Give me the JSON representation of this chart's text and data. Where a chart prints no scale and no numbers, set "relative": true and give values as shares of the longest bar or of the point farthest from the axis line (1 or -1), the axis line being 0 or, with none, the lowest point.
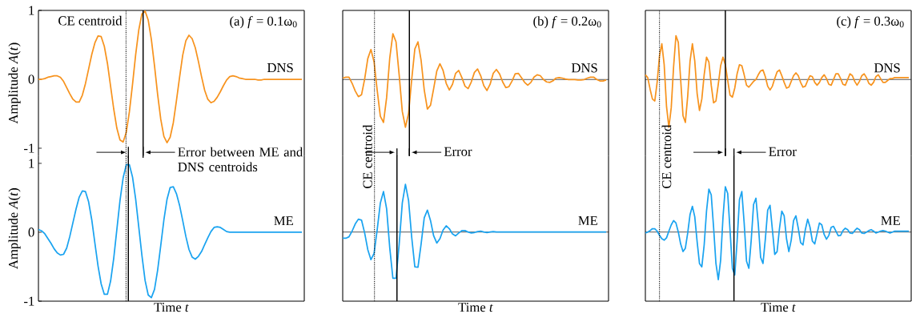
{
  "chart_data": [
    {
      "type": "line",
      "title": "(a) *f* = 0.1ω$_{0}$",
      "ylabel": "Amplitude *A*(*t*)",
      "ylim": [
        -1.11,
        1
      ],
      "yticks": [
        -1,
        0,
        1
      ],
      "tick_labels": "y",
      "categories": [
        null,
        null,
        null,
        null,
        null,
        null,
        null,
        null,
        null,
        null,
        null,
        null,
        null,
        null,
        null,
        null,
        null,
        null,
        null,
        null,
        null,
        null,
        null,
        null,
        null,
        null,
        null,
        null,
        null,
        null,
        null,
        null,
        null,
        null,
        null,
        null,
        null,
        null,
        null,
        null,
        null,
        null,
        null,
        null,
        null,
        null,
        null,
        null,
        null,
        null,
        null,
        null,
        null,
        null,
        null,
        null,
        null,
        null,
        null,
        null,
        null,
        null,
        null,
        null,
        null,
        null,
        null,
        null,
        null,
        null,
        null,
        null,
        null,
        null,
        null,
        null,
        null,
        null,
        null,
        null,
        null,
        null,
        null,
        null,
        null
      ],
      "series": [
        {
          "name": "DNS",
          "color": "#f7931e",
          "values": [
            0,
            0,
            0.01,
            0.03,
            0.04,
            0.05,
            0.05,
            0.03,
            -0.03,
            -0.12,
            -0.21,
            -0.29,
            -0.33,
            -0.33,
            -0.23,
            -0.06,
            0.15,
            0.36,
            0.53,
            0.63,
            0.62,
            0.48,
            0.23,
            -0.1,
            -0.43,
            -0.71,
            -0.88,
            -0.91,
            -0.77,
            -0.47,
            -0.07,
            0.36,
            0.72,
            0.95,
            0.99,
            0.86,
            0.58,
            0.2,
            -0.22,
            -0.58,
            -0.83,
            -0.92,
            -0.84,
            -0.63,
            -0.31,
            0.03,
            0.35,
            0.56,
            0.64,
            0.59,
            0.46,
            0.26,
            0.04,
            -0.16,
            -0.29,
            -0.34,
            -0.32,
            -0.26,
            -0.18,
            -0.09,
            -0.01,
            0.04,
            0.05,
            0.04,
            0.02,
            0.01,
            0,
            0,
            0,
            0,
            -0.01,
            -0.01,
            0,
            0,
            0,
            0,
            0,
            0,
            0,
            0,
            0,
            0,
            0,
            0,
            0
          ]
        }
      ],
      "annotations": [
        "CE centroid",
        "Error between ME and DNS centroids"
      ]
    },
    {
      "type": "line",
      "xlabel": "Time *t*",
      "ylabel": "Amplitude *A*(*t*)",
      "ylim": [
        -1,
        1.11
      ],
      "yticks": [
        -1,
        0,
        1
      ],
      "tick_labels": "y",
      "categories": [
        null,
        null,
        null,
        null,
        null,
        null,
        null,
        null,
        null,
        null,
        null,
        null,
        null,
        null,
        null,
        null,
        null,
        null,
        null,
        null,
        null,
        null,
        null,
        null,
        null,
        null,
        null,
        null,
        null,
        null,
        null,
        null,
        null,
        null,
        null,
        null,
        null,
        null,
        null,
        null,
        null,
        null,
        null,
        null,
        null,
        null,
        null,
        null,
        null,
        null,
        null,
        null,
        null,
        null,
        null,
        null,
        null,
        null,
        null,
        null,
        null,
        null,
        null,
        null,
        null,
        null,
        null,
        null,
        null,
        null,
        null,
        null,
        null,
        null,
        null,
        null,
        null,
        null,
        null,
        null,
        null,
        null,
        null,
        null,
        null
      ],
      "series": [
        {
          "name": "ME",
          "color": "#1aa3f0",
          "values": [
            0.04,
            0.02,
            -0.02,
            -0.09,
            -0.16,
            -0.24,
            -0.3,
            -0.33,
            -0.32,
            -0.23,
            -0.06,
            0.14,
            0.34,
            0.51,
            0.6,
            0.59,
            0.44,
            0.18,
            -0.16,
            -0.49,
            -0.75,
            -0.9,
            -0.9,
            -0.71,
            -0.38,
            0.04,
            0.46,
            0.79,
            0.98,
            0.98,
            0.8,
            0.48,
            0.07,
            -0.34,
            -0.7,
            -0.91,
            -0.95,
            -0.83,
            -0.55,
            -0.19,
            0.18,
            0.48,
            0.65,
            0.66,
            0.56,
            0.39,
            0.17,
            -0.06,
            -0.25,
            -0.36,
            -0.39,
            -0.35,
            -0.28,
            -0.18,
            -0.08,
            0.01,
            0.07,
            0.08,
            0.07,
            0.04,
            0.01,
            0,
            0,
            0,
            0,
            0,
            0,
            0,
            0,
            0,
            0,
            0,
            0,
            0,
            0,
            0,
            0,
            0,
            0,
            0,
            0,
            0,
            0,
            0,
            0
          ]
        }
      ]
    },
    {
      "type": "line",
      "title": "(b) *f* = 0.2ω$_{0}$",
      "relative": true,
      "categories": [
        null,
        null,
        null,
        null,
        null,
        null,
        null,
        null,
        null,
        null,
        null,
        null,
        null,
        null,
        null,
        null,
        null,
        null,
        null,
        null,
        null,
        null,
        null,
        null,
        null,
        null,
        null,
        null,
        null,
        null,
        null,
        null,
        null,
        null,
        null,
        null,
        null,
        null,
        null,
        null,
        null,
        null,
        null,
        null,
        null,
        null,
        null,
        null,
        null,
        null,
        null,
        null,
        null,
        null,
        null,
        null,
        null,
        null,
        null,
        null,
        null,
        null,
        null,
        null,
        null,
        null,
        null,
        null,
        null,
        null,
        null,
        null,
        null,
        null,
        null,
        null,
        null,
        null,
        null,
        null,
        null,
        null,
        null,
        null,
        null
      ],
      "series": [
        {
          "name": "DNS",
          "color": "#f7931e",
          "values": [
            0.03,
            0.05,
            0.05,
            -0.08,
            -0.24,
            -0.36,
            -0.32,
            0.01,
            0.44,
            0.63,
            0.37,
            -0.23,
            -0.77,
            -0.9,
            -0.38,
            0.45,
            0.96,
            0.79,
            0.1,
            -0.67,
            -1,
            -0.71,
            0,
            0.64,
            0.79,
            0.4,
            -0.22,
            -0.62,
            -0.54,
            -0.19,
            0.18,
            0.33,
            0.19,
            -0.08,
            -0.22,
            -0.1,
            0.13,
            0.19,
            0.04,
            -0.14,
            -0.19,
            -0.05,
            0.15,
            0.22,
            0.08,
            -0.13,
            -0.23,
            -0.1,
            0.13,
            0.21,
            0.12,
            -0.05,
            -0.17,
            -0.15,
            -0.03,
            0.12,
            0.13,
            0.04,
            -0.06,
            -0.12,
            -0.06,
            0.05,
            0.1,
            0.08,
            0,
            -0.05,
            -0.06,
            -0.03,
            0.03,
            0.04,
            0.03,
            0.01,
            0,
            0,
            0,
            -0.01,
            -0.01,
            0,
            0.03,
            0.05,
            0.05,
            0,
            -0.03,
            -0.03,
            -0.01
          ]
        }
      ],
      "annotations": [
        "Error"
      ]
    },
    {
      "type": "line",
      "xlabel": "Time *t*",
      "relative": true,
      "categories": [
        null,
        null,
        null,
        null,
        null,
        null,
        null,
        null,
        null,
        null,
        null,
        null,
        null,
        null,
        null,
        null,
        null,
        null,
        null,
        null,
        null,
        null,
        null,
        null,
        null,
        null,
        null,
        null,
        null,
        null,
        null,
        null,
        null,
        null,
        null,
        null,
        null,
        null,
        null,
        null,
        null,
        null,
        null,
        null,
        null,
        null,
        null,
        null,
        null,
        null,
        null,
        null,
        null,
        null,
        null,
        null,
        null,
        null,
        null,
        null,
        null,
        null,
        null,
        null,
        null,
        null,
        null,
        null,
        null,
        null,
        null,
        null,
        null,
        null,
        null,
        null,
        null,
        null,
        null,
        null,
        null,
        null,
        null,
        null,
        null
      ],
      "series": [
        {
          "name": "ME",
          "color": "#1aa3f0",
          "values": [
            -0.13,
            -0.13,
            -0.1,
            0.02,
            0.17,
            0.27,
            0.25,
            -0.02,
            -0.37,
            -0.58,
            -0.45,
            0.05,
            0.61,
            0.85,
            0.49,
            -0.33,
            -0.97,
            -0.97,
            -0.26,
            0.61,
            1,
            0.66,
            -0.11,
            -0.73,
            -0.74,
            -0.25,
            0.3,
            0.46,
            0.24,
            -0.08,
            -0.23,
            -0.14,
            0.04,
            0.13,
            0.07,
            -0.04,
            -0.08,
            -0.02,
            0.03,
            0.03,
            0,
            -0.02,
            -0.01,
            0.01,
            0.02,
            0,
            -0.01,
            0,
            0.01,
            0,
            0,
            0,
            0,
            0,
            0,
            0,
            0,
            0,
            0,
            0,
            0,
            0,
            0,
            0,
            0,
            0,
            0,
            0,
            0,
            0,
            0,
            0,
            0,
            0,
            0,
            0,
            0,
            0,
            0,
            0,
            0,
            0,
            0,
            0,
            0
          ]
        }
      ],
      "annotations": [
        "CE centroid"
      ]
    },
    {
      "type": "line",
      "title": "(c) *f* = 0.3ω$_{0}$",
      "relative": true,
      "categories": [
        null,
        null,
        null,
        null,
        null,
        null,
        null,
        null,
        null,
        null,
        null,
        null,
        null,
        null,
        null,
        null,
        null,
        null,
        null,
        null,
        null,
        null,
        null,
        null,
        null,
        null,
        null,
        null,
        null,
        null,
        null,
        null,
        null,
        null,
        null,
        null,
        null,
        null,
        null,
        null,
        null,
        null,
        null,
        null,
        null,
        null,
        null,
        null,
        null,
        null,
        null,
        null,
        null,
        null,
        null,
        null,
        null,
        null,
        null,
        null,
        null,
        null,
        null,
        null,
        null,
        null,
        null,
        null,
        null,
        null,
        null,
        null,
        null,
        null,
        null,
        null,
        null,
        null,
        null,
        null,
        null,
        null,
        null,
        null,
        null,
        null,
        null,
        null,
        null,
        null,
        null,
        null,
        null,
        null,
        null,
        null,
        null,
        null,
        null,
        null,
        null,
        null,
        null,
        null,
        null,
        null,
        null,
        null,
        null,
        null,
        null,
        null,
        null
      ],
      "series": [
        {
          "name": "DNS",
          "color": "#f7931e",
          "values": [
            0.1,
            0.04,
            -0.2,
            -0.41,
            -0.45,
            -0.06,
            0.49,
            0.75,
            0.31,
            -0.57,
            -1,
            -0.59,
            0.27,
            0.92,
            0.78,
            0,
            -0.76,
            -0.9,
            -0.35,
            0.39,
            0.75,
            0.39,
            -0.29,
            -0.65,
            -0.41,
            0.1,
            0.47,
            0.37,
            -0.12,
            -0.49,
            -0.45,
            -0.1,
            0.29,
            0.47,
            0.31,
            -0.02,
            -0.33,
            -0.37,
            -0.18,
            0.12,
            0.31,
            0.29,
            0.1,
            -0.12,
            -0.16,
            -0.1,
            -0.04,
            0,
            0.1,
            0.18,
            0.2,
            0.06,
            -0.14,
            -0.22,
            -0.14,
            0.02,
            0.16,
            0.2,
            0.08,
            -0.06,
            -0.18,
            -0.16,
            -0.04,
            0.08,
            0.14,
            0.08,
            -0.06,
            -0.16,
            -0.14,
            -0.02,
            0.08,
            0.06,
            -0.06,
            -0.12,
            -0.06,
            0.04,
            0.1,
            0.02,
            -0.1,
            -0.12,
            0,
            0.12,
            0.12,
            0.02,
            -0.1,
            -0.12,
            0,
            0.12,
            0.08,
            -0.04,
            -0.12,
            -0.04,
            0.08,
            0.12,
            0.04,
            -0.08,
            -0.12,
            -0.06,
            0.06,
            0.1,
            0.02,
            -0.06,
            -0.06,
            -0.02,
            0.02,
            0.02,
            0.04,
            0.04,
            0.04,
            0.04,
            0.04,
            0.04,
            0.04
          ]
        }
      ],
      "annotations": [
        "Error"
      ]
    },
    {
      "type": "line",
      "xlabel": "Time *t*",
      "relative": true,
      "categories": [
        null,
        null,
        null,
        null,
        null,
        null,
        null,
        null,
        null,
        null,
        null,
        null,
        null,
        null,
        null,
        null,
        null,
        null,
        null,
        null,
        null,
        null,
        null,
        null,
        null,
        null,
        null,
        null,
        null,
        null,
        null,
        null,
        null,
        null,
        null,
        null,
        null,
        null,
        null,
        null,
        null,
        null,
        null,
        null,
        null,
        null,
        null,
        null,
        null,
        null,
        null,
        null,
        null,
        null,
        null,
        null,
        null,
        null,
        null,
        null,
        null,
        null,
        null,
        null,
        null,
        null,
        null,
        null,
        null,
        null,
        null,
        null,
        null,
        null,
        null,
        null,
        null,
        null,
        null,
        null,
        null,
        null,
        null,
        null,
        null,
        null,
        null,
        null,
        null,
        null,
        null,
        null,
        null,
        null,
        null,
        null,
        null,
        null,
        null,
        null,
        null,
        null,
        null,
        null,
        null,
        null,
        null,
        null,
        null,
        null,
        null,
        null,
        null
      ],
      "series": [
        {
          "name": "ME",
          "color": "#1aa3f0",
          "values": [
            -0.02,
            0,
            0.03,
            0.07,
            0.07,
            0.02,
            -0.07,
            -0.14,
            -0.17,
            -0.12,
            0.02,
            0.15,
            0.24,
            0.19,
            0,
            -0.25,
            -0.41,
            -0.34,
            -0.02,
            0.37,
            0.54,
            0.32,
            -0.2,
            -0.66,
            -0.73,
            -0.27,
            0.44,
            0.9,
            0.78,
            0.1,
            -0.66,
            -1,
            -0.59,
            0.31,
            0.95,
            0.81,
            0.03,
            -0.76,
            -0.9,
            -0.19,
            0.68,
            0.85,
            0.19,
            -0.61,
            -0.76,
            -0.17,
            0.58,
            0.71,
            0.17,
            -0.53,
            -0.66,
            -0.15,
            0.46,
            0.56,
            0.05,
            -0.47,
            -0.41,
            0.07,
            0.44,
            0.34,
            -0.14,
            -0.41,
            -0.17,
            0.24,
            0.34,
            0.08,
            -0.22,
            -0.27,
            0.05,
            0.27,
            0.1,
            -0.19,
            -0.25,
            -0.03,
            0.19,
            0.15,
            -0.05,
            -0.15,
            -0.07,
            0.1,
            0.12,
            0.02,
            -0.08,
            -0.07,
            0.03,
            0.08,
            0.05,
            -0.02,
            -0.03,
            0.03,
            0.08,
            0.05,
            -0.02,
            -0.03,
            0,
            0.03,
            0.05,
            0.02,
            -0.02,
            0,
            0.02,
            0.03,
            0.02,
            0,
            -0.02,
            0,
            0.02,
            0.02,
            0.02,
            0.02,
            0.02,
            0.02,
            0.02
          ]
        }
      ],
      "annotations": [
        "CE centroid"
      ]
    }
  ]
}
